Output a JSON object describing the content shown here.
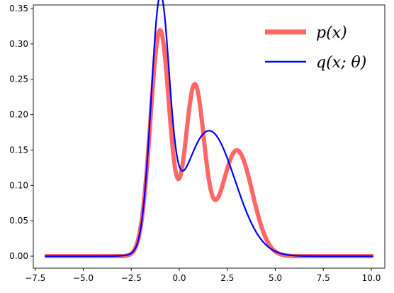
{
  "chart_data": {
    "type": "line",
    "title": "",
    "xlabel": "",
    "ylabel": "",
    "xlim": [
      -7.6,
      10.7
    ],
    "ylim": [
      -0.017,
      0.355
    ],
    "grid": false,
    "legend_position": "top-right",
    "x_ticks": [
      -7.5,
      -5.0,
      -2.5,
      0.0,
      2.5,
      5.0,
      7.5,
      10.0
    ],
    "x_tick_labels": [
      "−7.5",
      "−5.0",
      "−2.5",
      "0.0",
      "2.5",
      "5.0",
      "7.5",
      "10.0"
    ],
    "y_ticks": [
      0.0,
      0.05,
      0.1,
      0.15,
      0.2,
      0.25,
      0.3,
      0.35
    ],
    "y_tick_labels": [
      "0.00",
      "0.05",
      "0.10",
      "0.15",
      "0.20",
      "0.25",
      "0.30",
      "0.35"
    ],
    "x_range": [
      -7.0,
      10.1
    ],
    "series": [
      {
        "name": "p(x)",
        "color": "#ff6666",
        "kind": "gaussian_mixture",
        "components": [
          {
            "weight": 0.4,
            "mean": -1.0,
            "std": 0.5
          },
          {
            "weight": 0.3,
            "mean": 0.8,
            "std": 0.5
          },
          {
            "weight": 0.3,
            "mean": 3.0,
            "std": 0.8
          }
        ]
      },
      {
        "name": "q(x; θ)",
        "color": "#0000ff",
        "kind": "gaussian_mixture",
        "components": [
          {
            "weight": 0.4,
            "mean": -1.0,
            "std": 0.47
          },
          {
            "weight": 0.6,
            "mean": 1.55,
            "std": 1.35
          }
        ]
      }
    ]
  },
  "legend": {
    "p_label": "p(x)",
    "q_label": "q(x; θ)"
  }
}
